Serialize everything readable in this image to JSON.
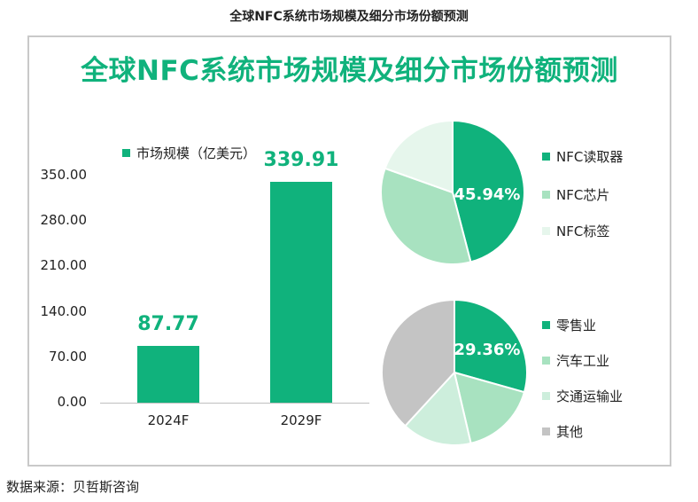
{
  "header": {
    "title": "全球NFC系统市场规模及细分市场份额预测"
  },
  "source": "数据来源：贝哲斯咨询",
  "chart_data": [
    {
      "type": "bar",
      "title": "全球NFC系统市场规模及细分市场份额预测",
      "categories": [
        "2024F",
        "2029F"
      ],
      "series": [
        {
          "name": "市场规模（亿美元）",
          "values": [
            87.77,
            339.91
          ]
        }
      ],
      "value_labels": [
        "87.77",
        "339.91"
      ],
      "yticks": [
        "0.00",
        "70.00",
        "140.00",
        "210.00",
        "280.00",
        "350.00"
      ],
      "ylim": [
        0,
        350
      ],
      "color": "#10b27c"
    },
    {
      "type": "pie",
      "labels": [
        "NFC读取器",
        "NFC芯片",
        "NFC标签"
      ],
      "values": [
        45.94,
        34.5,
        19.56
      ],
      "highlight_label": "45.94%",
      "colors": [
        "#10b27c",
        "#a8e2c0",
        "#e6f6ec"
      ]
    },
    {
      "type": "pie",
      "labels": [
        "零售业",
        "汽车工业",
        "交通运输业",
        "其他"
      ],
      "values": [
        29.36,
        17.0,
        15.5,
        38.14
      ],
      "highlight_label": "29.36%",
      "colors": [
        "#10b27c",
        "#a8e2c0",
        "#cdeedc",
        "#c4c4c4"
      ]
    }
  ]
}
